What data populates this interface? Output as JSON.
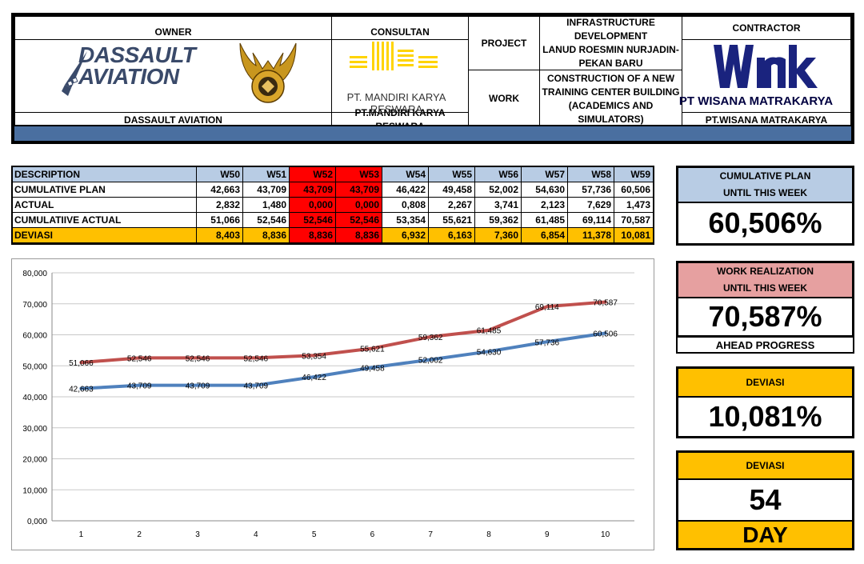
{
  "header": {
    "owner_label": "OWNER",
    "owner_logo_text_1": "DASSAULT",
    "owner_logo_text_2": "AVIATION",
    "owner_name": "DASSAULT AVIATION",
    "consultant_label": "CONSULTAN",
    "consultant_logo_text": "PT. MANDIRI KARYA RESWARA",
    "consultant_name": "PT.MANDIRI KARYA RESWARA",
    "project_label": "PROJECT",
    "project_line_1": "INFRASTRUCTURE DEVELOPMENT",
    "project_line_2": "LANUD ROESMIN NURJADIN-",
    "project_line_3": "PEKAN BARU",
    "work_label": "WORK",
    "work_line_1": "CONSTRUCTION OF A NEW",
    "work_line_2": "TRAINING CENTER BUILDING",
    "work_line_3": "(ACADEMICS AND SIMULATORS)",
    "contractor_label": "CONTRACTOR",
    "contractor_logo_text": "PT WISANA MATRAKARYA",
    "contractor_name": "PT.WISANA MATRAKARYA"
  },
  "table": {
    "head_label": "DESCRIPTION",
    "weeks": [
      "W50",
      "W51",
      "W52",
      "W53",
      "W54",
      "W55",
      "W56",
      "W57",
      "W58",
      "W59"
    ],
    "red_weeks": [
      2,
      3
    ],
    "rows": [
      {
        "label": "CUMULATIVE PLAN",
        "values": [
          "42,663",
          "43,709",
          "43,709",
          "43,709",
          "46,422",
          "49,458",
          "52,002",
          "54,630",
          "57,736",
          "60,506"
        ]
      },
      {
        "label": "ACTUAL",
        "values": [
          "2,832",
          "1,480",
          "0,000",
          "0,000",
          "0,808",
          "2,267",
          "3,741",
          "2,123",
          "7,629",
          "1,473"
        ]
      },
      {
        "label": "CUMULATIIVE ACTUAL",
        "values": [
          "51,066",
          "52,546",
          "52,546",
          "52,546",
          "53,354",
          "55,621",
          "59,362",
          "61,485",
          "69,114",
          "70,587"
        ]
      },
      {
        "label": "DEVIASI",
        "values": [
          "8,403",
          "8,836",
          "8,836",
          "8,836",
          "6,932",
          "6,163",
          "7,360",
          "6,854",
          "11,378",
          "10,081"
        ]
      }
    ]
  },
  "chart_data": {
    "type": "line",
    "title": "",
    "xlabel": "",
    "ylabel": "",
    "x": [
      1,
      2,
      3,
      4,
      5,
      6,
      7,
      8,
      9,
      10
    ],
    "ylim": [
      0,
      80
    ],
    "yticks": [
      "0,000",
      "10,000",
      "20,000",
      "30,000",
      "40,000",
      "50,000",
      "60,000",
      "70,000",
      "80,000"
    ],
    "grid": true,
    "series": [
      {
        "values": [
          42.663,
          43.709,
          43.709,
          43.709,
          46.422,
          49.458,
          52.002,
          54.63,
          57.736,
          60.506
        ],
        "labels": [
          "42,663",
          "43,709",
          "43,709",
          "43,709",
          "46,422",
          "49,458",
          "52,002",
          "54,630",
          "57,736",
          "60,506"
        ],
        "color": "#4f81bd"
      },
      {
        "values": [
          51.066,
          52.546,
          52.546,
          52.546,
          53.354,
          55.621,
          59.362,
          61.485,
          69.114,
          70.587
        ],
        "labels": [
          "51,066",
          "52,546",
          "52,546",
          "52,546",
          "53,354",
          "55,621",
          "59,362",
          "61,485",
          "69,114",
          "70,587"
        ],
        "color": "#c0504d"
      }
    ]
  },
  "panels": {
    "plan_head_1": "CUMULATIVE PLAN",
    "plan_head_2": "UNTIL THIS WEEK",
    "plan_value": "60,506%",
    "real_head_1": "WORK REALIZATION",
    "real_head_2": "UNTIL THIS WEEK",
    "real_value": "70,587%",
    "ahead_label": "AHEAD PROGRESS",
    "dev_head": "DEVIASI",
    "dev_value": "10,081%",
    "dev2_head": "DEVIASI",
    "days_value": "54",
    "days_unit": "DAY"
  },
  "colors": {
    "header_band": "#4a6fa0",
    "table_head": "#b8cce4",
    "deviasi_row": "#ffc000",
    "highlight_red": "#ff0000",
    "plan_panel_head": "#b8cce4",
    "real_panel_head": "#e6a0a0",
    "dev_panel_head": "#ffc000",
    "navy_logo": "#1a237e"
  }
}
